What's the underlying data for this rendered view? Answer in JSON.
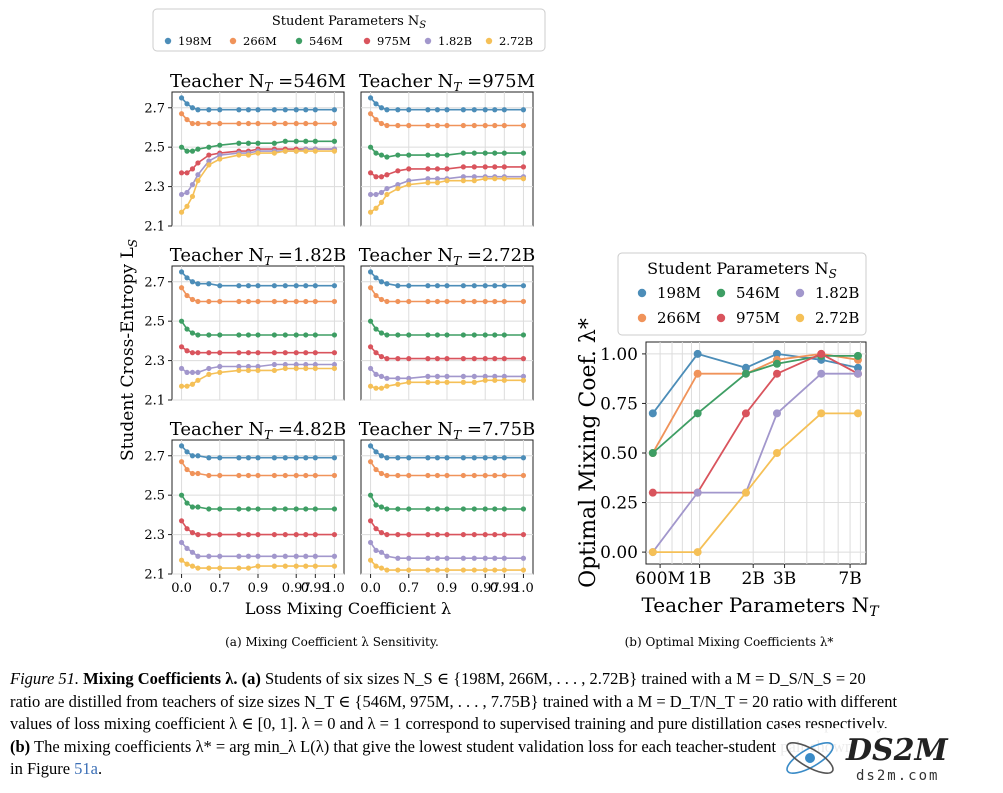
{
  "palette": {
    "198M": "#4c8db8",
    "266M": "#f0935a",
    "546M": "#3e9e64",
    "975M": "#d9545d",
    "1.82B": "#a297cc",
    "2.72B": "#f5c057"
  },
  "legend_top": {
    "title": "Student Parameters N",
    "title_sub": "S",
    "entries": [
      "198M",
      "266M",
      "546M",
      "975M",
      "1.82B",
      "2.72B"
    ]
  },
  "legend_right": {
    "title": "Student Parameters N",
    "title_sub": "S",
    "entries": [
      "198M",
      "546M",
      "1.82B",
      "266M",
      "975M",
      "2.72B"
    ]
  },
  "left_figure": {
    "ylabel": "Student Cross-Entropy L",
    "ylabel_sub": "S",
    "xlabel": "Loss Mixing Coefficient λ",
    "subcaption": "(a) Mixing Coefficient λ Sensitivity.",
    "x_tick_labels": [
      "0.0",
      "0.7",
      "0.9",
      "0.97",
      "0.99",
      "1.0"
    ],
    "y_tick_labels": [
      "2.1",
      "2.3",
      "2.5",
      "2.7"
    ]
  },
  "right_figure": {
    "ylabel": "Optimal Mixing Coef. λ*",
    "xlabel": "Teacher Parameters N",
    "xlabel_sub": "T",
    "subcaption": "(b) Optimal Mixing Coefficients λ*",
    "x_tick_labels": [
      "600M",
      "1B",
      "2B",
      "3B",
      "7B"
    ],
    "y_tick_labels": [
      "0.00",
      "0.25",
      "0.50",
      "0.75",
      "1.00"
    ]
  },
  "chart_data": [
    {
      "type": "line",
      "title": "Teacher N_T =546M",
      "title_prefix": "Teacher N",
      "title_suffix": " =546M",
      "x": [
        0.0,
        0.1,
        0.2,
        0.3,
        0.5,
        0.7,
        0.8,
        0.85,
        0.9,
        0.93,
        0.95,
        0.97,
        0.98,
        0.99,
        1.0
      ],
      "ylim": [
        2.1,
        2.8
      ],
      "series": [
        {
          "name": "198M",
          "values": [
            2.75,
            2.72,
            2.7,
            2.69,
            2.69,
            2.69,
            2.69,
            2.69,
            2.69,
            2.69,
            2.69,
            2.69,
            2.69,
            2.69,
            2.69
          ]
        },
        {
          "name": "266M",
          "values": [
            2.67,
            2.64,
            2.62,
            2.62,
            2.62,
            2.62,
            2.62,
            2.62,
            2.62,
            2.62,
            2.62,
            2.62,
            2.62,
            2.62,
            2.62
          ]
        },
        {
          "name": "546M",
          "values": [
            2.5,
            2.48,
            2.48,
            2.49,
            2.5,
            2.51,
            2.52,
            2.52,
            2.52,
            2.52,
            2.53,
            2.53,
            2.53,
            2.53,
            2.53
          ]
        },
        {
          "name": "975M",
          "values": [
            2.37,
            2.37,
            2.39,
            2.42,
            2.46,
            2.47,
            2.48,
            2.48,
            2.49,
            2.49,
            2.49,
            2.49,
            2.49,
            2.49,
            2.49
          ]
        },
        {
          "name": "1.82B",
          "values": [
            2.26,
            2.27,
            2.31,
            2.36,
            2.43,
            2.46,
            2.47,
            2.47,
            2.48,
            2.48,
            2.48,
            2.48,
            2.49,
            2.49,
            2.49
          ]
        },
        {
          "name": "2.72B",
          "values": [
            2.17,
            2.2,
            2.25,
            2.33,
            2.41,
            2.44,
            2.46,
            2.46,
            2.47,
            2.47,
            2.48,
            2.48,
            2.48,
            2.48,
            2.48
          ]
        }
      ]
    },
    {
      "type": "line",
      "title": "Teacher N_T =975M",
      "title_prefix": "Teacher N",
      "title_suffix": " =975M",
      "x": [
        0.0,
        0.1,
        0.2,
        0.3,
        0.5,
        0.7,
        0.8,
        0.85,
        0.9,
        0.93,
        0.95,
        0.97,
        0.98,
        0.99,
        1.0
      ],
      "ylim": [
        2.1,
        2.8
      ],
      "series": [
        {
          "name": "198M",
          "values": [
            2.75,
            2.72,
            2.7,
            2.69,
            2.69,
            2.69,
            2.69,
            2.69,
            2.69,
            2.69,
            2.69,
            2.69,
            2.69,
            2.69,
            2.69
          ]
        },
        {
          "name": "266M",
          "values": [
            2.67,
            2.64,
            2.62,
            2.61,
            2.61,
            2.61,
            2.61,
            2.61,
            2.61,
            2.61,
            2.61,
            2.61,
            2.61,
            2.61,
            2.61
          ]
        },
        {
          "name": "546M",
          "values": [
            2.5,
            2.47,
            2.46,
            2.45,
            2.46,
            2.46,
            2.46,
            2.46,
            2.46,
            2.47,
            2.47,
            2.47,
            2.47,
            2.47,
            2.47
          ]
        },
        {
          "name": "975M",
          "values": [
            2.37,
            2.35,
            2.35,
            2.36,
            2.38,
            2.39,
            2.39,
            2.39,
            2.39,
            2.4,
            2.4,
            2.4,
            2.4,
            2.4,
            2.4
          ]
        },
        {
          "name": "1.82B",
          "values": [
            2.26,
            2.26,
            2.27,
            2.29,
            2.31,
            2.33,
            2.34,
            2.34,
            2.34,
            2.35,
            2.35,
            2.35,
            2.35,
            2.35,
            2.35
          ]
        },
        {
          "name": "2.72B",
          "values": [
            2.17,
            2.19,
            2.22,
            2.26,
            2.29,
            2.31,
            2.32,
            2.32,
            2.33,
            2.33,
            2.33,
            2.34,
            2.34,
            2.34,
            2.34
          ]
        }
      ]
    },
    {
      "type": "line",
      "title": "Teacher N_T =1.82B",
      "title_prefix": "Teacher N",
      "title_suffix": " =1.82B",
      "x": [
        0.0,
        0.1,
        0.2,
        0.3,
        0.5,
        0.7,
        0.8,
        0.85,
        0.9,
        0.93,
        0.95,
        0.97,
        0.98,
        0.99,
        1.0
      ],
      "ylim": [
        2.1,
        2.8
      ],
      "series": [
        {
          "name": "198M",
          "values": [
            2.75,
            2.72,
            2.7,
            2.69,
            2.69,
            2.68,
            2.68,
            2.68,
            2.68,
            2.68,
            2.68,
            2.68,
            2.68,
            2.68,
            2.68
          ]
        },
        {
          "name": "266M",
          "values": [
            2.67,
            2.63,
            2.61,
            2.6,
            2.6,
            2.6,
            2.6,
            2.6,
            2.6,
            2.6,
            2.6,
            2.6,
            2.6,
            2.6,
            2.6
          ]
        },
        {
          "name": "546M",
          "values": [
            2.5,
            2.46,
            2.44,
            2.43,
            2.43,
            2.43,
            2.43,
            2.43,
            2.43,
            2.43,
            2.43,
            2.43,
            2.43,
            2.43,
            2.43
          ]
        },
        {
          "name": "975M",
          "values": [
            2.37,
            2.35,
            2.34,
            2.34,
            2.34,
            2.34,
            2.34,
            2.34,
            2.34,
            2.34,
            2.34,
            2.34,
            2.34,
            2.34,
            2.34
          ]
        },
        {
          "name": "1.82B",
          "values": [
            2.26,
            2.24,
            2.24,
            2.24,
            2.26,
            2.27,
            2.27,
            2.27,
            2.27,
            2.28,
            2.28,
            2.28,
            2.28,
            2.28,
            2.28
          ]
        },
        {
          "name": "2.72B",
          "values": [
            2.17,
            2.17,
            2.18,
            2.2,
            2.23,
            2.24,
            2.25,
            2.25,
            2.25,
            2.25,
            2.26,
            2.26,
            2.26,
            2.26,
            2.26
          ]
        }
      ]
    },
    {
      "type": "line",
      "title": "Teacher N_T =2.72B",
      "title_prefix": "Teacher N",
      "title_suffix": " =2.72B",
      "x": [
        0.0,
        0.1,
        0.2,
        0.3,
        0.5,
        0.7,
        0.8,
        0.85,
        0.9,
        0.93,
        0.95,
        0.97,
        0.98,
        0.99,
        1.0
      ],
      "ylim": [
        2.1,
        2.8
      ],
      "series": [
        {
          "name": "198M",
          "values": [
            2.75,
            2.72,
            2.7,
            2.69,
            2.68,
            2.68,
            2.68,
            2.68,
            2.68,
            2.68,
            2.68,
            2.68,
            2.68,
            2.68,
            2.68
          ]
        },
        {
          "name": "266M",
          "values": [
            2.67,
            2.63,
            2.61,
            2.6,
            2.6,
            2.6,
            2.6,
            2.6,
            2.6,
            2.6,
            2.6,
            2.6,
            2.6,
            2.6,
            2.6
          ]
        },
        {
          "name": "546M",
          "values": [
            2.5,
            2.46,
            2.44,
            2.43,
            2.43,
            2.43,
            2.43,
            2.43,
            2.43,
            2.43,
            2.43,
            2.43,
            2.43,
            2.43,
            2.43
          ]
        },
        {
          "name": "975M",
          "values": [
            2.37,
            2.34,
            2.32,
            2.31,
            2.31,
            2.31,
            2.31,
            2.31,
            2.31,
            2.31,
            2.31,
            2.31,
            2.31,
            2.31,
            2.31
          ]
        },
        {
          "name": "1.82B",
          "values": [
            2.26,
            2.23,
            2.22,
            2.21,
            2.21,
            2.21,
            2.22,
            2.22,
            2.22,
            2.22,
            2.22,
            2.22,
            2.22,
            2.22,
            2.22
          ]
        },
        {
          "name": "2.72B",
          "values": [
            2.17,
            2.16,
            2.16,
            2.17,
            2.18,
            2.19,
            2.19,
            2.19,
            2.19,
            2.19,
            2.19,
            2.2,
            2.2,
            2.2,
            2.2
          ]
        }
      ]
    },
    {
      "type": "line",
      "title": "Teacher N_T =4.82B",
      "title_prefix": "Teacher N",
      "title_suffix": " =4.82B",
      "x": [
        0.0,
        0.1,
        0.2,
        0.3,
        0.5,
        0.7,
        0.8,
        0.85,
        0.9,
        0.93,
        0.95,
        0.97,
        0.98,
        0.99,
        1.0
      ],
      "ylim": [
        2.1,
        2.8
      ],
      "series": [
        {
          "name": "198M",
          "values": [
            2.75,
            2.72,
            2.7,
            2.7,
            2.69,
            2.69,
            2.69,
            2.69,
            2.69,
            2.69,
            2.69,
            2.69,
            2.69,
            2.69,
            2.69
          ]
        },
        {
          "name": "266M",
          "values": [
            2.67,
            2.63,
            2.61,
            2.61,
            2.6,
            2.6,
            2.6,
            2.6,
            2.6,
            2.6,
            2.6,
            2.6,
            2.6,
            2.6,
            2.6
          ]
        },
        {
          "name": "546M",
          "values": [
            2.5,
            2.46,
            2.44,
            2.44,
            2.43,
            2.43,
            2.43,
            2.43,
            2.43,
            2.43,
            2.43,
            2.43,
            2.43,
            2.43,
            2.43
          ]
        },
        {
          "name": "975M",
          "values": [
            2.37,
            2.33,
            2.31,
            2.3,
            2.3,
            2.3,
            2.3,
            2.3,
            2.3,
            2.3,
            2.3,
            2.3,
            2.3,
            2.3,
            2.3
          ]
        },
        {
          "name": "1.82B",
          "values": [
            2.26,
            2.23,
            2.21,
            2.19,
            2.19,
            2.19,
            2.19,
            2.19,
            2.19,
            2.19,
            2.19,
            2.19,
            2.19,
            2.19,
            2.19
          ]
        },
        {
          "name": "2.72B",
          "values": [
            2.17,
            2.15,
            2.14,
            2.13,
            2.13,
            2.13,
            2.13,
            2.13,
            2.14,
            2.14,
            2.14,
            2.14,
            2.14,
            2.14,
            2.14
          ]
        }
      ]
    },
    {
      "type": "line",
      "title": "Teacher N_T =7.75B",
      "title_prefix": "Teacher N",
      "title_suffix": " =7.75B",
      "x": [
        0.0,
        0.1,
        0.2,
        0.3,
        0.5,
        0.7,
        0.8,
        0.85,
        0.9,
        0.93,
        0.95,
        0.97,
        0.98,
        0.99,
        1.0
      ],
      "ylim": [
        2.1,
        2.8
      ],
      "series": [
        {
          "name": "198M",
          "values": [
            2.75,
            2.72,
            2.7,
            2.69,
            2.69,
            2.69,
            2.69,
            2.69,
            2.69,
            2.69,
            2.69,
            2.69,
            2.69,
            2.69,
            2.69
          ]
        },
        {
          "name": "266M",
          "values": [
            2.67,
            2.63,
            2.61,
            2.6,
            2.6,
            2.6,
            2.6,
            2.6,
            2.6,
            2.6,
            2.6,
            2.6,
            2.6,
            2.6,
            2.6
          ]
        },
        {
          "name": "546M",
          "values": [
            2.5,
            2.45,
            2.44,
            2.43,
            2.43,
            2.43,
            2.43,
            2.43,
            2.43,
            2.43,
            2.43,
            2.43,
            2.43,
            2.43,
            2.43
          ]
        },
        {
          "name": "975M",
          "values": [
            2.37,
            2.33,
            2.31,
            2.3,
            2.3,
            2.3,
            2.3,
            2.3,
            2.3,
            2.3,
            2.3,
            2.3,
            2.3,
            2.3,
            2.3
          ]
        },
        {
          "name": "1.82B",
          "values": [
            2.26,
            2.22,
            2.21,
            2.19,
            2.18,
            2.18,
            2.18,
            2.18,
            2.18,
            2.18,
            2.18,
            2.18,
            2.18,
            2.18,
            2.18
          ]
        },
        {
          "name": "2.72B",
          "values": [
            2.17,
            2.14,
            2.13,
            2.12,
            2.12,
            2.12,
            2.12,
            2.12,
            2.12,
            2.12,
            2.12,
            2.12,
            2.12,
            2.12,
            2.12
          ]
        }
      ]
    },
    {
      "type": "line",
      "title": "Optimal Mixing Coefficients λ*",
      "x": [
        0.546,
        0.975,
        1.82,
        2.72,
        4.82,
        7.75
      ],
      "x_scale": "log",
      "xlim": [
        0.5,
        8.6
      ],
      "ylim": [
        -0.06,
        1.06
      ],
      "xlabel": "Teacher Parameters N_T",
      "ylabel": "Optimal Mixing Coef. λ*",
      "series": [
        {
          "name": "198M",
          "values": [
            0.7,
            1.0,
            0.93,
            1.0,
            0.97,
            0.93
          ]
        },
        {
          "name": "266M",
          "values": [
            0.5,
            0.9,
            0.9,
            0.97,
            1.0,
            0.97
          ]
        },
        {
          "name": "546M",
          "values": [
            0.5,
            0.7,
            0.9,
            0.95,
            0.99,
            0.99
          ]
        },
        {
          "name": "975M",
          "values": [
            0.3,
            0.3,
            0.7,
            0.9,
            1.0,
            0.9
          ]
        },
        {
          "name": "1.82B",
          "values": [
            0.0,
            0.3,
            0.3,
            0.7,
            0.9,
            0.9
          ]
        },
        {
          "name": "2.72B",
          "values": [
            0.0,
            0.0,
            0.3,
            0.5,
            0.7,
            0.7
          ]
        }
      ]
    }
  ],
  "caption": {
    "fig_label": "Figure 51.",
    "bold_title": "Mixing Coefficients λ.",
    "part_a_label": "(a)",
    "line1_rest": "Students of six sizes N_S ∈ {198M, 266M, . . . , 2.72B} trained with a M = D_S/N_S = 20",
    "line2": "ratio are distilled from teachers of size sizes N_T ∈ {546M, 975M, . . . , 7.75B} trained with a M = D_T/N_T = 20 ratio with different",
    "line3": "values of loss mixing coefficient λ ∈ [0, 1]. λ = 0 and λ = 1 correspond to supervised training and pure distillation cases respectively.",
    "part_b_label": "(b)",
    "line4_rest": "The mixing coefficients λ* = arg min_λ L(λ) that give the lowest student validation loss for each teacher-student pair shown",
    "line5_prefix": "in Figure ",
    "line5_link": "51a",
    "line5_suffix": "."
  },
  "watermark": {
    "brand": "DS2M",
    "url": "ds2m.com"
  }
}
